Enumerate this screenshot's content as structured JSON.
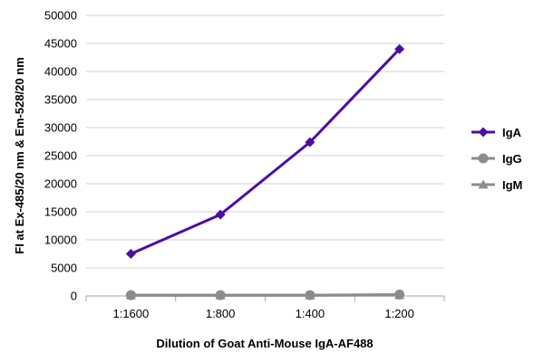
{
  "chart_data": {
    "type": "line",
    "title": "",
    "xlabel": "Dilution of Goat Anti-Mouse IgA-AF488",
    "ylabel": "FI at Ex-485/20 nm & Em-528/20 nm",
    "categories": [
      "1:1600",
      "1:800",
      "1:400",
      "1:200"
    ],
    "ylim": [
      0,
      50000
    ],
    "yticks": [
      0,
      5000,
      10000,
      15000,
      20000,
      25000,
      30000,
      35000,
      40000,
      45000,
      50000
    ],
    "ytick_labels": [
      "0",
      "5000",
      "10000",
      "15000",
      "20000",
      "25000",
      "30000",
      "35000",
      "40000",
      "45000",
      "50000"
    ],
    "grid": "horizontal",
    "legend_position": "right",
    "series": [
      {
        "name": "IgA",
        "values": [
          7500,
          14500,
          27400,
          44000
        ],
        "color": "#4b0fa3",
        "marker": "diamond"
      },
      {
        "name": "IgG",
        "values": [
          150,
          150,
          150,
          250
        ],
        "color": "#8c8c8c",
        "marker": "circle"
      },
      {
        "name": "IgM",
        "values": [
          100,
          100,
          100,
          150
        ],
        "color": "#8c8c8c",
        "marker": "triangle"
      }
    ]
  }
}
